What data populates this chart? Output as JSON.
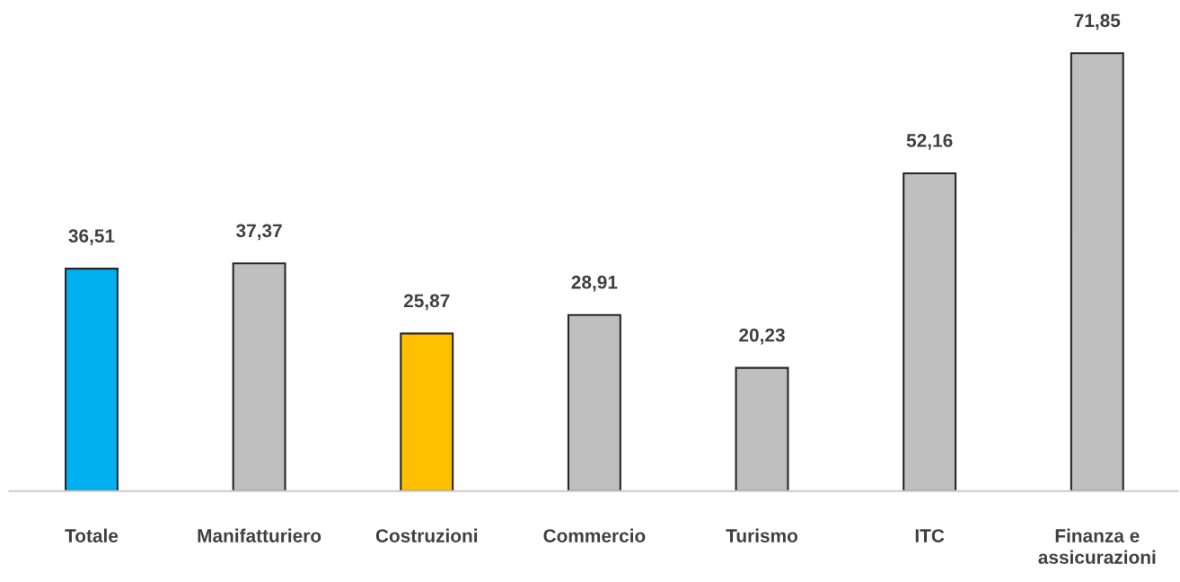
{
  "chart_data": {
    "type": "bar",
    "categories": [
      "Totale",
      "Manifatturiero",
      "Costruzioni",
      "Commercio",
      "Turismo",
      "ITC",
      "Finanza e\nassicurazioni"
    ],
    "values": [
      36.51,
      37.37,
      25.87,
      28.91,
      20.23,
      52.16,
      71.85
    ],
    "value_labels": [
      "36,51",
      "37,37",
      "25,87",
      "28,91",
      "20,23",
      "52,16",
      "71,85"
    ],
    "colors": [
      "#00b0f0",
      "#bfbfbf",
      "#ffc000",
      "#bfbfbf",
      "#bfbfbf",
      "#bfbfbf",
      "#bfbfbf"
    ],
    "grid": false,
    "legend": false
  }
}
